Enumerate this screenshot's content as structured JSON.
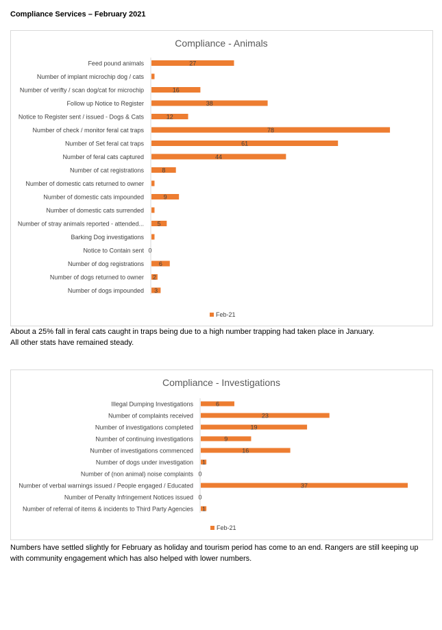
{
  "document": {
    "title": "Compliance Services – February 2021"
  },
  "chart_data": [
    {
      "type": "bar",
      "orientation": "horizontal",
      "title": "Compliance - Animals",
      "categories": [
        "Feed pound animals",
        "Number of implant microchip dog / cats",
        "Number of verifty / scan dog/cat for microchip",
        "Follow up Notice to Register",
        "Notice to Register sent / issued - Dogs & Cats",
        "Number of check / monitor feral cat traps",
        "Number of Set feral cat traps",
        "Number of feral cats captured",
        "Number of cat registrations",
        "Number of domestic cats returned to owner",
        "Number of domestic cats impounded",
        "Number of domestic cats surrended",
        "Number of stray animals reported - attended...",
        "Barking Dog investigations",
        "Notice to Contain sent",
        "Number of dog registrations",
        "Number of dogs returned to owner",
        "Number of dogs impounded"
      ],
      "series": [
        {
          "name": "Feb-21",
          "values": [
            27,
            1,
            16,
            38,
            12,
            78,
            61,
            44,
            8,
            1,
            9,
            1,
            5,
            1,
            0,
            6,
            2,
            3
          ],
          "labels": [
            "27",
            "",
            "16",
            "38",
            "12",
            "78",
            "61",
            "44",
            "8",
            "",
            "9",
            "",
            "5",
            "",
            "0",
            "6",
            "2",
            "3"
          ]
        }
      ],
      "xlim": [
        0,
        80
      ],
      "grid": false,
      "legend": "bottom",
      "color": "#ED7D31"
    },
    {
      "type": "bar",
      "orientation": "horizontal",
      "title": "Compliance - Investigations",
      "categories": [
        "Illegal Dumping Investigations",
        "Number of complaints received",
        "Number of investigations completed",
        "Number of continuing investigations",
        "Number of investigations commenced",
        "Number of dogs under investigation",
        "Number of (non animal) noise complaints",
        "Number of verbal warnings issued  / People engaged / Educated",
        "Number of Penalty Infringement Notices issued",
        "Number of referral of items & incidents to Third Party Agencies"
      ],
      "series": [
        {
          "name": "Feb-21",
          "values": [
            6,
            23,
            19,
            9,
            16,
            1,
            0,
            37,
            0,
            1
          ],
          "labels": [
            "6",
            "23",
            "19",
            "9",
            "16",
            "1",
            "0",
            "37",
            "0",
            "1"
          ]
        }
      ],
      "xlim": [
        0,
        37
      ],
      "grid": false,
      "legend": "bottom",
      "color": "#ED7D31"
    }
  ],
  "notes": {
    "animals": [
      "About a 25% fall in feral cats caught in traps being due to a high number trapping had taken place in January.",
      "All other stats have remained steady."
    ],
    "investigations": [
      "Numbers have settled slightly for February as holiday and tourism period has come to an end. Rangers are still keeping up",
      "with community engagement which has also helped with lower numbers."
    ]
  }
}
